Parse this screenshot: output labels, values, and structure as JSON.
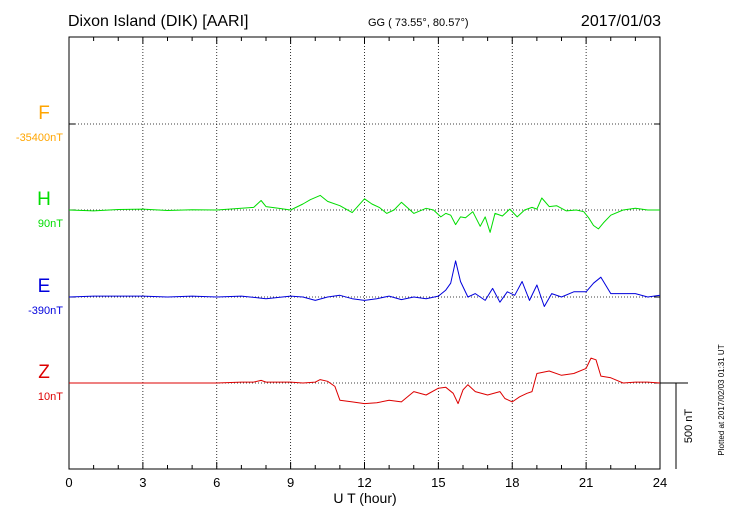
{
  "header": {
    "station": "Dixon Island (DIK)  [AARI]",
    "coords": "GG ( 73.55°,  80.57°)",
    "date": "2017/01/03"
  },
  "footer": {
    "plotted": "Plotted at 2017/02/03 01:31  UT"
  },
  "scale_bar": {
    "label": "500 nT",
    "value_nT": 500
  },
  "chart_data": {
    "type": "line",
    "title": "Dixon Island (DIK)  [AARI]",
    "xlabel": "U T (hour)",
    "ylabel": "",
    "xlim": [
      0,
      24
    ],
    "xticks": [
      0,
      3,
      6,
      9,
      12,
      15,
      18,
      21,
      24
    ],
    "xtick_labels": [
      "0",
      "3",
      "6",
      "9",
      "12",
      "15",
      "18",
      "21",
      "24"
    ],
    "grid": true,
    "units": "nT",
    "scale_nT_per_division": 250,
    "components": [
      {
        "name": "F",
        "base_label": "-35400nT",
        "color": "#ffa500",
        "x": [],
        "y": []
      },
      {
        "name": "H",
        "base_label": "90nT",
        "color": "#00dd00",
        "x": [
          0,
          1,
          2,
          3,
          4,
          5,
          6,
          7,
          7.5,
          7.8,
          8,
          8.5,
          9,
          9.5,
          9.8,
          10.2,
          10.5,
          11,
          11.5,
          12,
          12.3,
          12.6,
          12.9,
          13.2,
          13.5,
          14,
          14.5,
          14.8,
          15.1,
          15.3,
          15.5,
          15.7,
          15.9,
          16.1,
          16.4,
          16.7,
          16.9,
          17.1,
          17.3,
          17.6,
          17.9,
          18.2,
          18.5,
          18.8,
          19,
          19.2,
          19.5,
          19.8,
          20.2,
          20.6,
          20.9,
          21.1,
          21.3,
          21.5,
          21.7,
          22,
          22.5,
          23,
          23.5,
          24
        ],
        "y": [
          0,
          -5,
          3,
          5,
          -3,
          2,
          0,
          10,
          15,
          55,
          20,
          10,
          0,
          35,
          60,
          85,
          50,
          25,
          -15,
          65,
          35,
          15,
          -20,
          0,
          45,
          -20,
          10,
          0,
          -40,
          -20,
          -30,
          -85,
          -40,
          -45,
          -10,
          -95,
          -40,
          -130,
          -20,
          -35,
          5,
          -40,
          0,
          15,
          5,
          70,
          20,
          25,
          -5,
          0,
          -10,
          -45,
          -90,
          -110,
          -75,
          -30,
          0,
          10,
          0,
          0
        ]
      },
      {
        "name": "E",
        "base_label": "-390nT",
        "color": "#0000dd",
        "x": [
          0,
          1,
          2,
          3,
          4,
          5,
          6,
          7,
          8,
          9,
          9.5,
          10,
          10.5,
          11,
          11.5,
          12,
          12.5,
          13,
          13.5,
          14,
          14.5,
          15,
          15.3,
          15.5,
          15.7,
          15.9,
          16.2,
          16.5,
          16.9,
          17.2,
          17.5,
          17.8,
          18.1,
          18.4,
          18.7,
          19,
          19.3,
          19.6,
          20,
          20.5,
          21,
          21.3,
          21.6,
          22,
          22.5,
          23,
          23.5,
          24
        ],
        "y": [
          0,
          5,
          5,
          5,
          0,
          5,
          0,
          5,
          -10,
          5,
          0,
          -20,
          0,
          10,
          -10,
          -20,
          -10,
          5,
          -15,
          0,
          -10,
          5,
          40,
          80,
          210,
          90,
          0,
          20,
          -20,
          50,
          -30,
          30,
          10,
          90,
          -20,
          70,
          -55,
          20,
          0,
          30,
          30,
          80,
          115,
          20,
          20,
          20,
          0,
          10
        ]
      },
      {
        "name": "Z",
        "base_label": "10nT",
        "color": "#dd0000",
        "x": [
          0,
          1,
          2,
          3,
          4,
          5,
          6,
          7,
          7.5,
          7.8,
          8,
          8.5,
          9,
          9.5,
          10,
          10.2,
          10.5,
          10.8,
          11,
          11.5,
          12,
          12.5,
          13,
          13.5,
          14,
          14.5,
          15,
          15.3,
          15.6,
          15.8,
          16,
          16.2,
          16.5,
          17,
          17.5,
          17.7,
          18,
          18.3,
          18.6,
          18.8,
          19,
          19.5,
          20,
          20.5,
          21,
          21.2,
          21.4,
          21.6,
          22,
          22.5,
          23,
          23.5,
          24
        ],
        "y": [
          0,
          0,
          0,
          0,
          0,
          0,
          0,
          5,
          5,
          15,
          5,
          5,
          5,
          0,
          5,
          20,
          10,
          -20,
          -100,
          -110,
          -120,
          -115,
          -100,
          -110,
          -50,
          -70,
          -30,
          -25,
          -60,
          -120,
          -40,
          -10,
          -50,
          -70,
          -50,
          -90,
          -110,
          -80,
          -60,
          -50,
          55,
          70,
          45,
          55,
          85,
          145,
          135,
          40,
          30,
          0,
          5,
          5,
          0
        ]
      }
    ]
  }
}
